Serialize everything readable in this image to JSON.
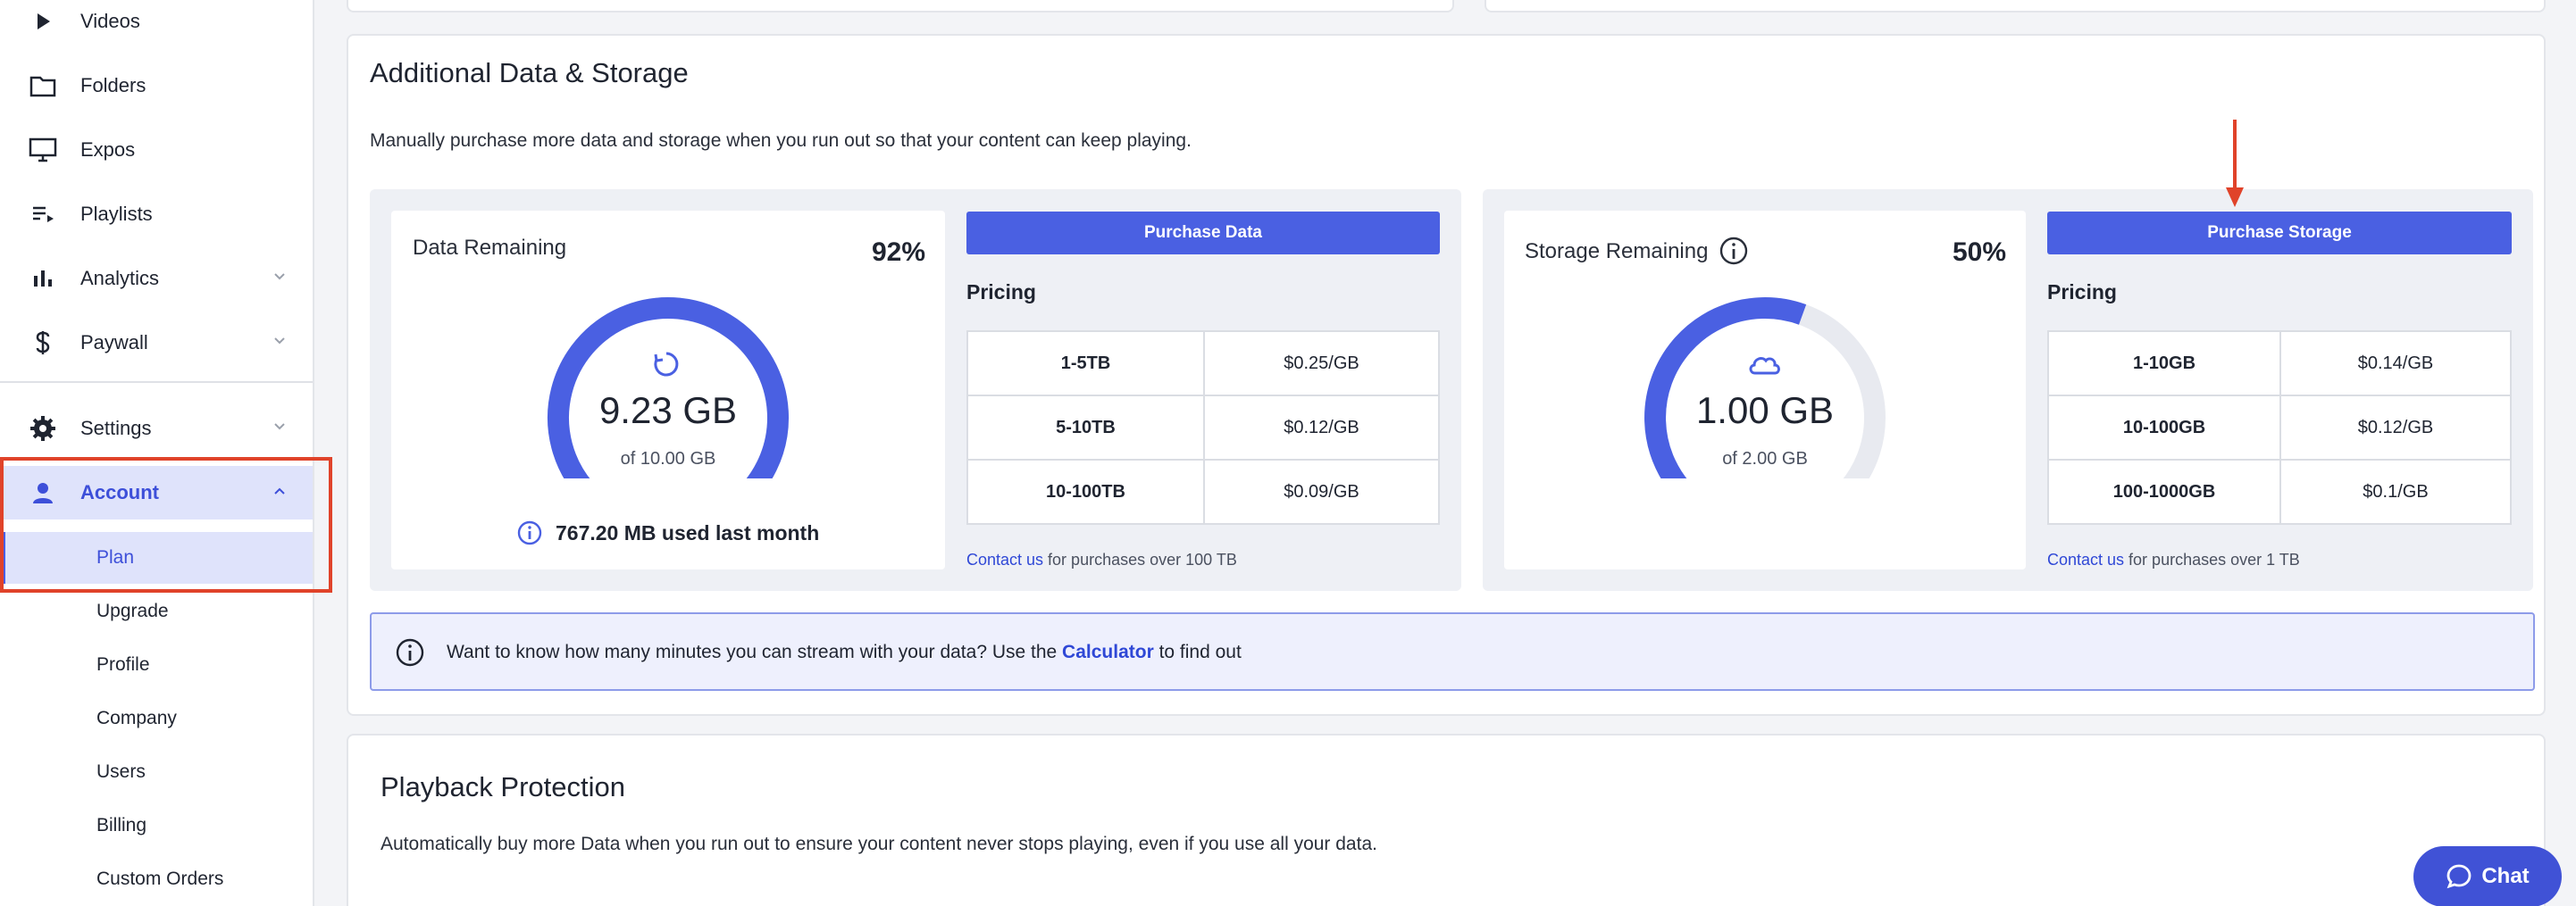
{
  "sidebar": {
    "items": [
      {
        "label": "Videos",
        "icon": "play-icon"
      },
      {
        "label": "Folders",
        "icon": "folder-icon"
      },
      {
        "label": "Expos",
        "icon": "monitor-icon"
      },
      {
        "label": "Playlists",
        "icon": "playlist-icon"
      },
      {
        "label": "Analytics",
        "icon": "bar-chart-icon"
      },
      {
        "label": "Paywall",
        "icon": "dollar-icon"
      },
      {
        "label": "Settings",
        "icon": "gear-icon"
      },
      {
        "label": "Account",
        "icon": "user-icon"
      }
    ],
    "account_subitems": [
      "Plan",
      "Upgrade",
      "Profile",
      "Company",
      "Users",
      "Billing",
      "Custom Orders"
    ]
  },
  "storage_section": {
    "title": "Additional Data & Storage",
    "description": "Manually purchase more data and storage when you run out so that your content can keep playing.",
    "data": {
      "title": "Data Remaining",
      "percent_label": "92%",
      "percent_value": 0.92,
      "amount": "9.23 GB",
      "of_total": "of 10.00 GB",
      "used_last_month": "767.20 MB used last month",
      "button": "Purchase Data",
      "pricing_label": "Pricing",
      "pricing": [
        {
          "tier": "1-5TB",
          "price": "$0.25/GB"
        },
        {
          "tier": "5-10TB",
          "price": "$0.12/GB"
        },
        {
          "tier": "10-100TB",
          "price": "$0.09/GB"
        }
      ],
      "contact_link": "Contact us",
      "contact_text": " for purchases over 100 TB"
    },
    "storage": {
      "title": "Storage Remaining",
      "percent_label": "50%",
      "percent_value": 0.5,
      "amount": "1.00 GB",
      "of_total": "of 2.00 GB",
      "button": "Purchase Storage",
      "pricing_label": "Pricing",
      "pricing": [
        {
          "tier": "1-10GB",
          "price": "$0.14/GB"
        },
        {
          "tier": "10-100GB",
          "price": "$0.12/GB"
        },
        {
          "tier": "100-1000GB",
          "price": "$0.1/GB"
        }
      ],
      "contact_link": "Contact us",
      "contact_text": " for purchases over 1 TB"
    },
    "banner": {
      "text_before": "Want to know how many minutes you can stream with your data? Use the ",
      "link": "Calculator",
      "text_after": " to find out"
    }
  },
  "playback_section": {
    "title": "Playback Protection",
    "description": "Automatically buy more Data when you run out to ensure your content never stops playing, even if you use all your data."
  },
  "chat": {
    "label": "Chat"
  },
  "colors": {
    "accent": "#4a60e2",
    "highlight": "#e0432a",
    "gauge_track": "#e8eaf0"
  }
}
